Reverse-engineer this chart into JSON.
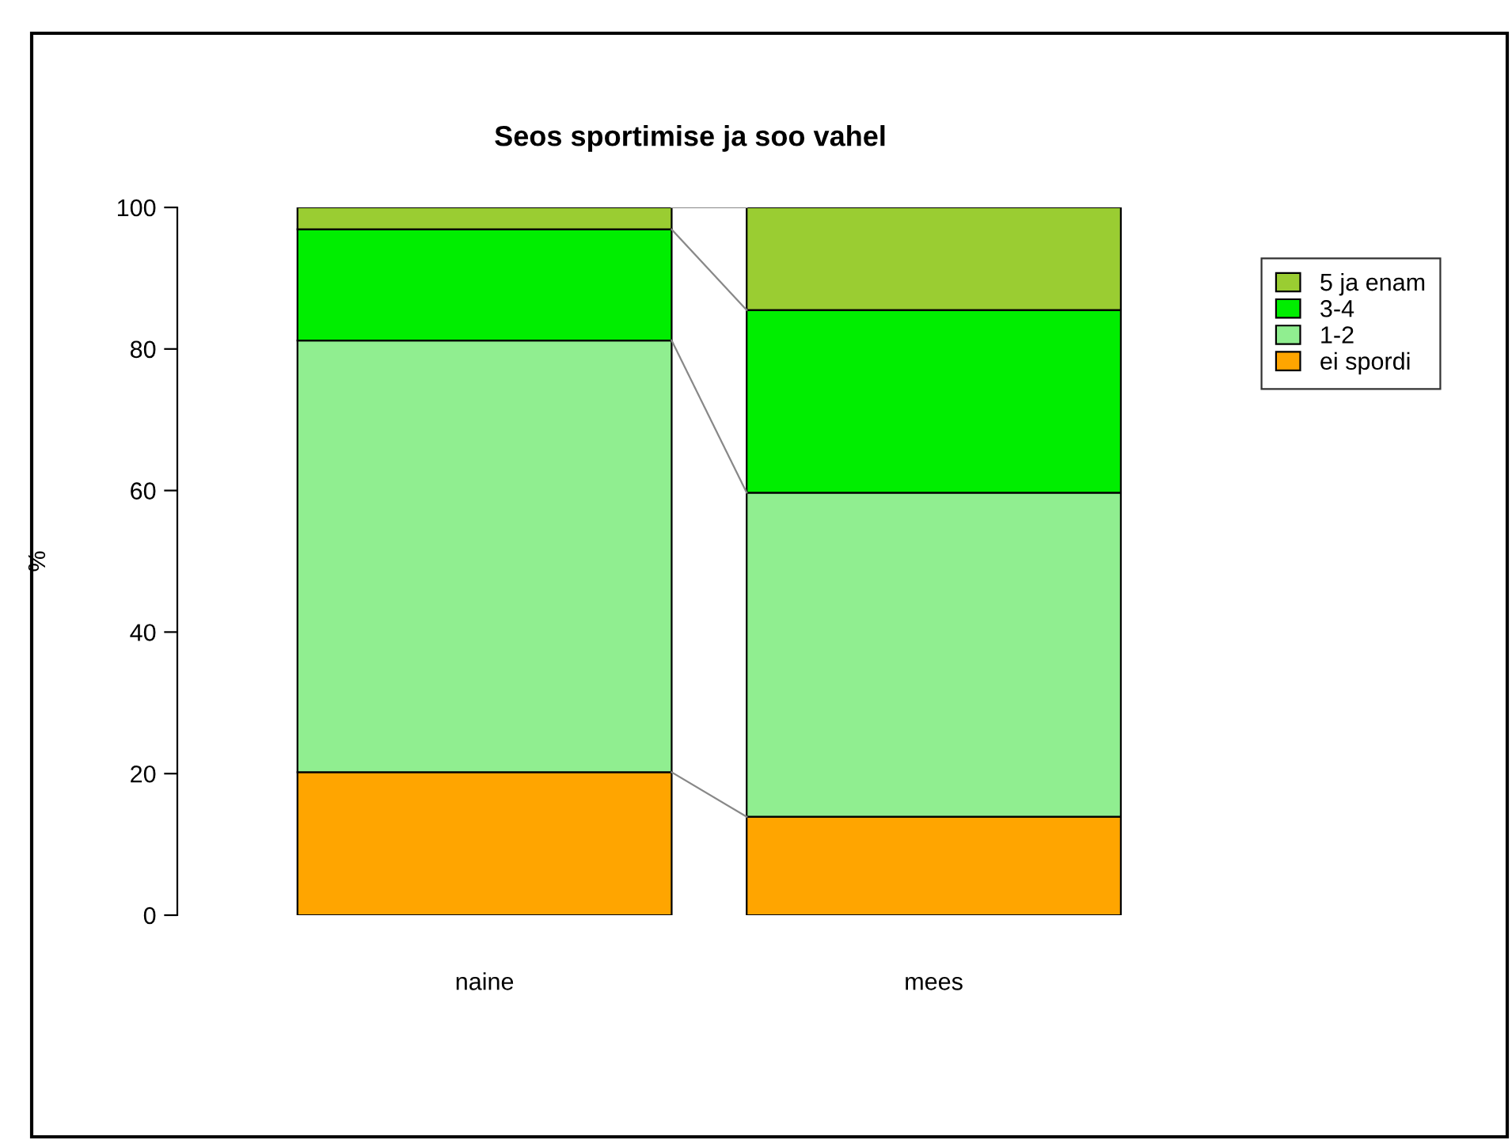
{
  "chart_data": {
    "type": "bar",
    "title": "Seos sportimise ja soo vahel",
    "ylabel": "%",
    "categories": [
      "naine",
      "mees"
    ],
    "stacked": true,
    "series": [
      {
        "name": "ei spordi",
        "color": "#ffa500",
        "values": [
          20.2,
          13.9
        ]
      },
      {
        "name": "1-2",
        "color": "#90ee90",
        "values": [
          61.0,
          45.8
        ]
      },
      {
        "name": "3-4",
        "color": "#00ee00",
        "values": [
          15.7,
          25.8
        ]
      },
      {
        "name": "5 ja enam",
        "color": "#9acd32",
        "values": [
          3.1,
          14.5
        ]
      }
    ],
    "ylim": [
      0,
      100
    ],
    "yticks": [
      0,
      20,
      40,
      60,
      80,
      100
    ],
    "grid": false,
    "legend": "top right"
  }
}
